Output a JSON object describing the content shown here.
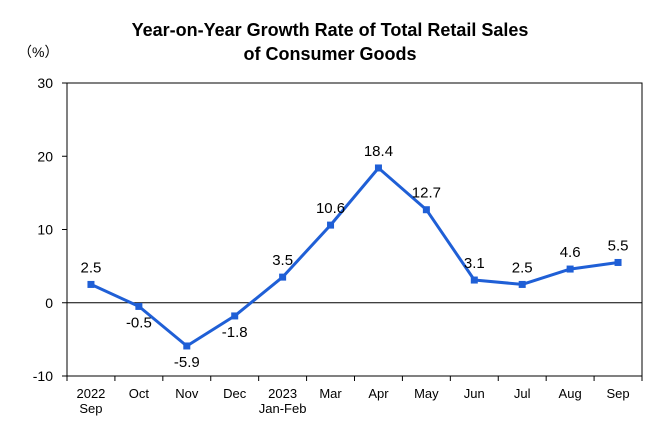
{
  "chart_data": {
    "type": "line",
    "title_line1": "Year-on-Year Growth Rate of Total Retail Sales",
    "title_line2": "of Consumer Goods",
    "unit": "（%）",
    "categories": [
      [
        "2022",
        "Sep"
      ],
      [
        "Oct"
      ],
      [
        "Nov"
      ],
      [
        "Dec"
      ],
      [
        "2023",
        "Jan-Feb"
      ],
      [
        "Mar"
      ],
      [
        "Apr"
      ],
      [
        "May"
      ],
      [
        "Jun"
      ],
      [
        "Jul"
      ],
      [
        "Aug"
      ],
      [
        "Sep"
      ]
    ],
    "values": [
      2.5,
      -0.5,
      -5.9,
      -1.8,
      3.5,
      10.6,
      18.4,
      12.7,
      3.1,
      2.5,
      4.6,
      5.5
    ],
    "data_labels": [
      "2.5",
      "-0.5",
      "-5.9",
      "-1.8",
      "3.5",
      "10.6",
      "18.4",
      "12.7",
      "3.1",
      "2.5",
      "4.6",
      "5.5"
    ],
    "yticks": [
      "30",
      "20",
      "10",
      "0",
      "-10"
    ],
    "ytick_values": [
      30,
      20,
      10,
      0,
      -10
    ],
    "ylim": [
      -10,
      30
    ],
    "grid": false,
    "line_color": "#1f5fd6"
  }
}
